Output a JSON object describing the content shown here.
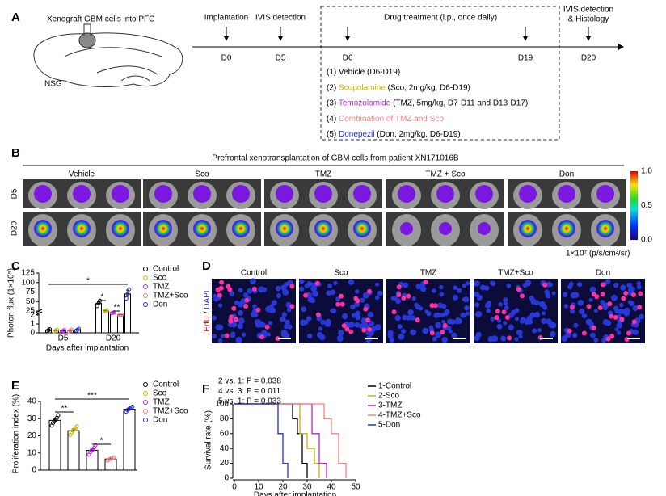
{
  "panel_a": {
    "label": "A",
    "site": "Xenograft GBM cells into PFC",
    "mouse": "NSG",
    "events": [
      "Implantation",
      "IVIS detection",
      "Drug treatment (i.p., once daily)",
      "IVIS detection",
      "& Histology"
    ],
    "days": [
      "D0",
      "D5",
      "D6",
      "D19",
      "D20"
    ],
    "treatments": [
      {
        "prefix": "(1) ",
        "name": "Vehicle",
        "rest": " (D6-D19)",
        "color": "#000000"
      },
      {
        "prefix": "(2) ",
        "name": "Scopolamine",
        "rest": " (Sco, 2mg/kg, D6-D19)",
        "color": "#c8b400"
      },
      {
        "prefix": "(3) ",
        "name": "Temozolomide",
        "rest": " (TMZ, 5mg/kg, D7-D11 and D13-D17)",
        "color": "#c020e0"
      },
      {
        "prefix": "(4) ",
        "name": "Combination of TMZ and Sco",
        "color": "#f08080"
      },
      {
        "prefix": "(5) ",
        "name": "Donepezil",
        "rest": " (Don, 2mg/kg, D6-D19)",
        "color": "#2030d0"
      }
    ]
  },
  "panel_b": {
    "label": "B",
    "title": "Prefrontal xenotransplantation of GBM cells from patient XN171016B",
    "groups": [
      "Vehicle",
      "Sco",
      "TMZ",
      "TMZ + Sco",
      "Don"
    ],
    "rows": [
      "D5",
      "D20"
    ],
    "colorbar": [
      "1.0",
      "0.5",
      "0.0"
    ],
    "unit": "1×10⁷ (p/s/cm²/sr)"
  },
  "panel_d": {
    "label": "D",
    "groups": [
      "Control",
      "Sco",
      "TMZ",
      "TMZ+Sco",
      "Don"
    ],
    "stain": {
      "edu": "EdU",
      "sep": " / ",
      "dapi": "DAPI"
    }
  },
  "chart_data": [
    {
      "label": "C",
      "type": "bar",
      "ylabel": "Photon flux (1×10⁵)",
      "xlabel": "Days after implantation",
      "categories": [
        "D5",
        "D20"
      ],
      "ylim": [
        0,
        125
      ],
      "ybreak": [
        2,
        25
      ],
      "yticks": [
        0,
        1,
        2,
        25,
        50,
        75,
        100,
        125
      ],
      "significance": [
        "*",
        "*",
        "**"
      ],
      "series": [
        {
          "name": "Control",
          "color": "#000000",
          "values": [
            0.3,
            45
          ],
          "errors": [
            0.1,
            5
          ],
          "points": [
            [
              0.2,
              0.3,
              0.4
            ],
            [
              38,
              45,
              52
            ]
          ]
        },
        {
          "name": "Sco",
          "color": "#c8b400",
          "values": [
            0.25,
            25
          ],
          "errors": [
            0.08,
            2
          ],
          "points": [
            [
              0.15,
              0.25,
              0.35
            ],
            [
              23,
              25,
              27
            ]
          ]
        },
        {
          "name": "TMZ",
          "color": "#c020e0",
          "values": [
            0.2,
            15
          ],
          "errors": [
            0.07,
            2
          ],
          "points": [
            [
              0.1,
              0.2,
              0.3
            ],
            [
              13,
              15,
              17
            ]
          ]
        },
        {
          "name": "TMZ+Sco",
          "color": "#f08080",
          "values": [
            0.25,
            3
          ],
          "errors": [
            0.08,
            1
          ],
          "points": [
            [
              0.15,
              0.25,
              0.35
            ],
            [
              2.5,
              3,
              4
            ]
          ]
        },
        {
          "name": "Don",
          "color": "#2030d0",
          "values": [
            0.35,
            70
          ],
          "errors": [
            0.1,
            10
          ],
          "points": [
            [
              0.25,
              0.35,
              0.45
            ],
            [
              58,
              70,
              82
            ]
          ]
        }
      ]
    },
    {
      "label": "E",
      "type": "bar",
      "ylabel": "Proliferation index (%)",
      "ylim": [
        0,
        40
      ],
      "yticks": [
        0,
        10,
        20,
        30,
        40
      ],
      "significance": [
        "**",
        "***",
        "*"
      ],
      "series": [
        {
          "name": "Control",
          "color": "#000000",
          "values": [
            29
          ],
          "errors": [
            1.3
          ],
          "points": [
            [
              26,
              27.5,
              28.5,
              29.5,
              30.5,
              32
            ]
          ]
        },
        {
          "name": "Sco",
          "color": "#c8b400",
          "values": [
            23
          ],
          "errors": [
            1.1
          ],
          "points": [
            [
              20.5,
              22,
              23,
              23.5,
              24.5,
              25.5
            ]
          ]
        },
        {
          "name": "TMZ",
          "color": "#c020e0",
          "values": [
            11.5
          ],
          "errors": [
            1.2
          ],
          "points": [
            [
              9,
              10.5,
              11.5,
              12,
              13,
              14.5
            ]
          ]
        },
        {
          "name": "TMZ+Sco",
          "color": "#f08080",
          "values": [
            6.5
          ],
          "errors": [
            0.5
          ],
          "points": [
            [
              5.5,
              6,
              6.5,
              7,
              7,
              7.5
            ]
          ]
        },
        {
          "name": "Don",
          "color": "#2030d0",
          "values": [
            35.5
          ],
          "errors": [
            0.7
          ],
          "points": [
            [
              34,
              35,
              35.5,
              36,
              36.5,
              37
            ]
          ]
        }
      ]
    },
    {
      "label": "F",
      "type": "line",
      "xlabel": "Days after implantation",
      "ylabel": "Survival rate (%)",
      "xlim": [
        0,
        50
      ],
      "xticks": [
        0,
        10,
        20,
        30,
        40,
        50
      ],
      "ylim": [
        0,
        100
      ],
      "yticks": [
        0,
        20,
        40,
        60,
        80,
        100
      ],
      "annotations": [
        "2 vs. 1: P = 0.038",
        "4 vs. 3: P = 0.011",
        "5 vs. 1: P = 0.033"
      ],
      "series": [
        {
          "name": "1-Control",
          "color": "#000000",
          "x": [
            0,
            24,
            24,
            26,
            26,
            28,
            28,
            30,
            30
          ],
          "values": [
            100,
            100,
            80,
            80,
            60,
            60,
            20,
            20,
            0
          ]
        },
        {
          "name": "2-Sco",
          "color": "#c8b400",
          "x": [
            0,
            27,
            27,
            30,
            30,
            33,
            33,
            35,
            35
          ],
          "values": [
            100,
            100,
            60,
            60,
            40,
            40,
            20,
            20,
            0
          ]
        },
        {
          "name": "3-TMZ",
          "color": "#c020e0",
          "x": [
            0,
            32,
            32,
            35,
            35,
            38,
            38
          ],
          "values": [
            100,
            100,
            60,
            60,
            20,
            20,
            0
          ]
        },
        {
          "name": "4-TMZ+Sco",
          "color": "#ff7f7f",
          "x": [
            0,
            37,
            37,
            40,
            40,
            43,
            43,
            46,
            46
          ],
          "values": [
            100,
            100,
            80,
            80,
            60,
            60,
            20,
            20,
            0
          ]
        },
        {
          "name": "5-Don",
          "color": "#2030d0",
          "x": [
            0,
            18,
            18,
            20,
            20,
            22,
            22
          ],
          "values": [
            100,
            100,
            60,
            60,
            20,
            20,
            0
          ]
        }
      ]
    }
  ]
}
